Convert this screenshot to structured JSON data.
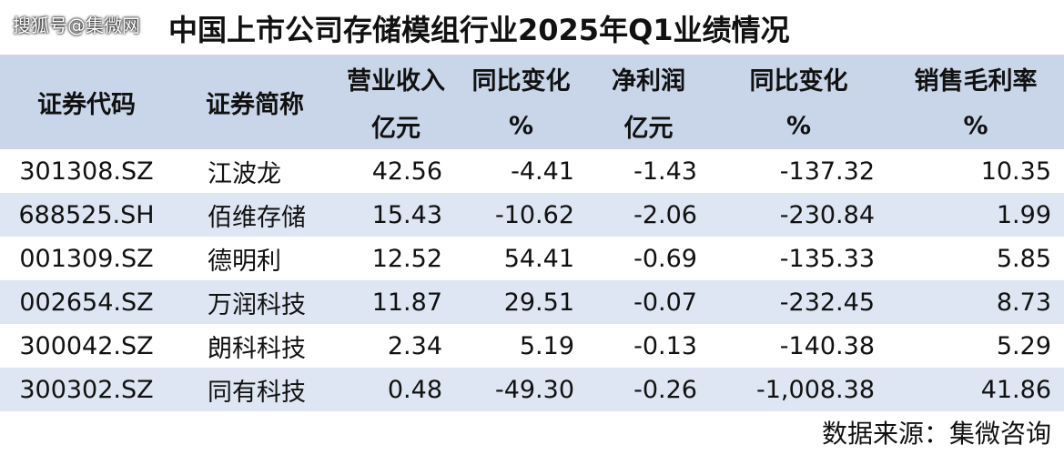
{
  "watermark": "搜狐号@集微网",
  "title": "中国上市公司存储模组行业2025年Q1业绩情况",
  "table": {
    "header": [
      [
        "证券代码"
      ],
      [
        "证券简称"
      ],
      [
        "营业收入",
        "亿元"
      ],
      [
        "同比变化",
        "%"
      ],
      [
        "净利润",
        "亿元"
      ],
      [
        "同比变化",
        "%"
      ],
      [
        "销售毛利率",
        "%"
      ]
    ],
    "rows": [
      [
        "301308.SZ",
        "江波龙",
        "42.56",
        "-4.41",
        "-1.43",
        "-137.32",
        "10.35"
      ],
      [
        "688525.SH",
        "佰维存储",
        "15.43",
        "-10.62",
        "-2.06",
        "-230.84",
        "1.99"
      ],
      [
        "001309.SZ",
        "德明利",
        "12.52",
        "54.41",
        "-0.69",
        "-135.33",
        "5.85"
      ],
      [
        "002654.SZ",
        "万润科技",
        "11.87",
        "29.51",
        "-0.07",
        "-232.45",
        "8.73"
      ],
      [
        "300042.SZ",
        "朗科科技",
        "2.34",
        "5.19",
        "-0.13",
        "-140.38",
        "5.29"
      ],
      [
        "300302.SZ",
        "同有科技",
        "0.48",
        "-49.30",
        "-0.26",
        "-1,008.38",
        "41.86"
      ]
    ]
  },
  "source": "数据来源：集微咨询"
}
